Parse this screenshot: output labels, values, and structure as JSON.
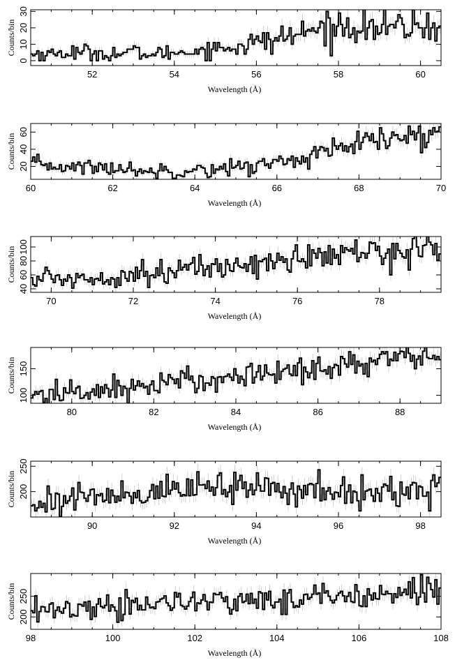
{
  "chart_data": [
    {
      "type": "line",
      "drawstyle": "steps",
      "xlabel": "Wavelength (Å)",
      "ylabel": "Counts/bin",
      "xlim": [
        50.5,
        60.5
      ],
      "ylim": [
        -3,
        31
      ],
      "xticks": [
        52,
        54,
        56,
        58,
        60
      ],
      "yticks": [
        0,
        10,
        20,
        30
      ],
      "ylabel_ticks": [
        "0",
        "10",
        "20",
        "30"
      ],
      "series": [
        {
          "x": [
            50.5,
            51.0,
            51.5,
            52.0,
            52.5,
            53.0,
            53.5,
            54.0,
            54.5,
            55.0,
            55.5,
            56.0,
            56.5,
            57.0,
            57.5,
            58.0,
            58.5,
            59.0,
            59.5,
            60.0,
            60.5
          ],
          "y": [
            4,
            4,
            5,
            5,
            4,
            5,
            4,
            5,
            6,
            7,
            9,
            11,
            13,
            16,
            19,
            21,
            21,
            20,
            20,
            21,
            21
          ]
        }
      ]
    },
    {
      "type": "line",
      "drawstyle": "steps",
      "xlabel": "Wavelength (Å)",
      "ylabel": "Counts/bin",
      "xlim": [
        60,
        70
      ],
      "ylim": [
        5,
        70
      ],
      "xticks": [
        60,
        62,
        64,
        66,
        68,
        70
      ],
      "yticks": [
        20,
        40,
        60
      ],
      "ylabel_ticks": [
        "20",
        "40",
        "60"
      ],
      "series": [
        {
          "x": [
            60.0,
            60.5,
            61.0,
            61.5,
            62.0,
            62.5,
            63.0,
            63.5,
            64.0,
            64.5,
            65.0,
            65.5,
            66.0,
            66.5,
            67.0,
            67.5,
            68.0,
            68.5,
            69.0,
            69.5,
            70.0
          ],
          "y": [
            22,
            21,
            20,
            19,
            18,
            16,
            15,
            15,
            16,
            17,
            19,
            21,
            25,
            29,
            34,
            40,
            46,
            50,
            53,
            55,
            57
          ]
        }
      ]
    },
    {
      "type": "line",
      "drawstyle": "steps",
      "xlabel": "Wavelength (Å)",
      "ylabel": "Counts/bin",
      "xlim": [
        69.5,
        79.5
      ],
      "ylim": [
        35,
        115
      ],
      "xticks": [
        70,
        72,
        74,
        76,
        78
      ],
      "yticks": [
        40,
        60,
        80,
        100
      ],
      "ylabel_ticks": [
        "40",
        "60",
        "80",
        "100"
      ],
      "series": [
        {
          "x": [
            69.5,
            70.0,
            70.5,
            71.0,
            71.5,
            72.0,
            72.5,
            73.0,
            73.5,
            74.0,
            74.5,
            75.0,
            75.5,
            76.0,
            76.5,
            77.0,
            77.5,
            78.0,
            78.5,
            79.0,
            79.5
          ],
          "y": [
            54,
            55,
            55,
            55,
            59,
            62,
            64,
            66,
            68,
            71,
            74,
            77,
            80,
            83,
            86,
            89,
            91,
            93,
            95,
            97,
            98
          ]
        }
      ]
    },
    {
      "type": "line",
      "drawstyle": "steps",
      "xlabel": "Wavelength (Å)",
      "ylabel": "Counts/bin",
      "xlim": [
        79,
        89
      ],
      "ylim": [
        85,
        190
      ],
      "xticks": [
        80,
        82,
        84,
        86,
        88
      ],
      "yticks": [
        100,
        150
      ],
      "ylabel_ticks": [
        "100",
        "150"
      ],
      "series": [
        {
          "x": [
            79.0,
            79.5,
            80.0,
            80.5,
            81.0,
            81.5,
            82.0,
            82.5,
            83.0,
            83.5,
            84.0,
            84.5,
            85.0,
            85.5,
            86.0,
            86.5,
            87.0,
            87.5,
            88.0,
            88.5,
            89.0
          ],
          "y": [
            100,
            102,
            105,
            108,
            112,
            116,
            120,
            124,
            128,
            132,
            136,
            140,
            144,
            148,
            152,
            156,
            160,
            164,
            168,
            172,
            176
          ]
        }
      ]
    },
    {
      "type": "line",
      "drawstyle": "steps",
      "xlabel": "Wavelength (Å)",
      "ylabel": "Counts/bin",
      "xlim": [
        88.5,
        98.5
      ],
      "ylim": [
        150,
        260
      ],
      "xticks": [
        90,
        92,
        94,
        96,
        98
      ],
      "yticks": [
        200,
        250
      ],
      "ylabel_ticks": [
        "200",
        "250"
      ],
      "series": [
        {
          "x": [
            88.5,
            89.0,
            89.5,
            90.0,
            90.5,
            91.0,
            91.5,
            92.0,
            92.5,
            93.0,
            93.5,
            94.0,
            94.5,
            95.0,
            95.5,
            96.0,
            96.5,
            97.0,
            97.5,
            98.0,
            98.5
          ],
          "y": [
            178,
            182,
            186,
            190,
            194,
            197,
            200,
            203,
            206,
            208,
            208,
            207,
            205,
            203,
            201,
            199,
            197,
            197,
            199,
            203,
            207
          ]
        }
      ]
    },
    {
      "type": "line",
      "drawstyle": "steps",
      "xlabel": "Wavelength (Å)",
      "ylabel": "Counts/bin",
      "xlim": [
        98,
        108
      ],
      "ylim": [
        170,
        305
      ],
      "xticks": [
        98,
        100,
        102,
        104,
        106,
        108
      ],
      "yticks": [
        200,
        250
      ],
      "ylabel_ticks": [
        "200",
        "250"
      ],
      "series": [
        {
          "x": [
            98.0,
            98.5,
            99.0,
            99.5,
            100.0,
            100.5,
            101.0,
            101.5,
            102.0,
            102.5,
            103.0,
            103.5,
            104.0,
            104.5,
            105.0,
            105.5,
            106.0,
            106.5,
            107.0,
            107.5,
            108.0
          ],
          "y": [
            212,
            216,
            220,
            223,
            226,
            229,
            232,
            234,
            235,
            236,
            237,
            239,
            242,
            246,
            250,
            254,
            258,
            261,
            264,
            266,
            268
          ]
        }
      ]
    }
  ]
}
